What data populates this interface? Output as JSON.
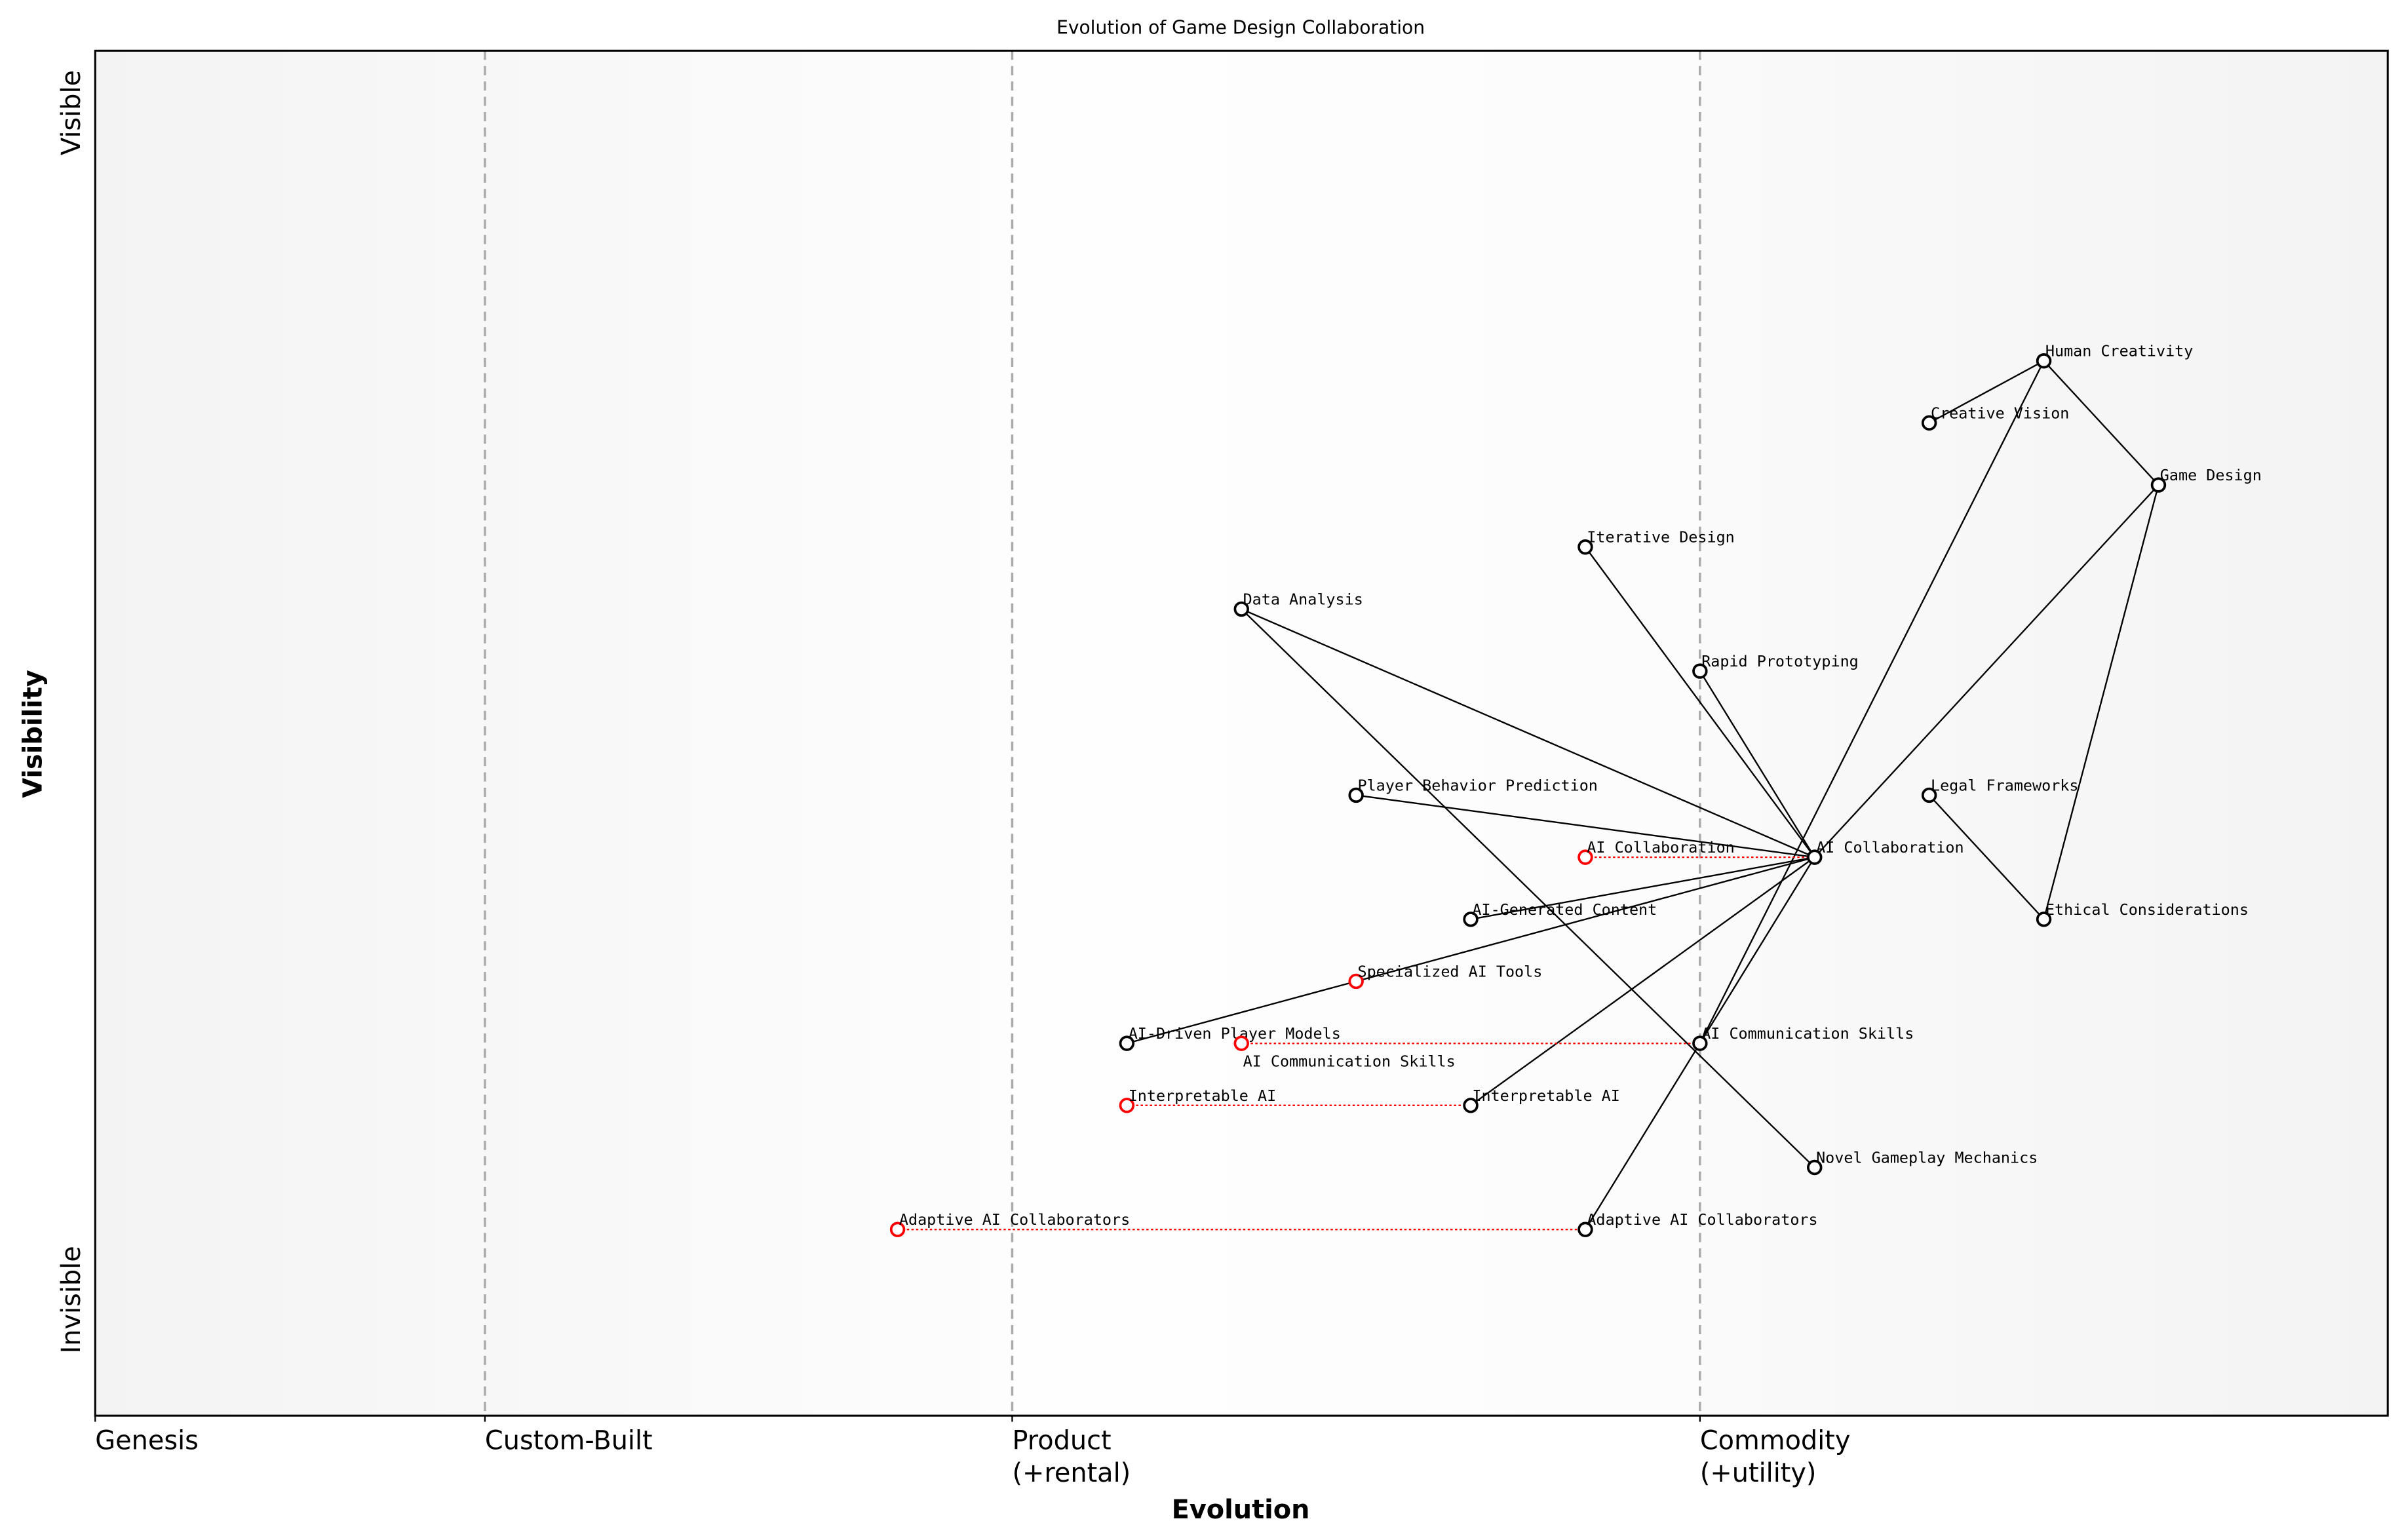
{
  "chart_data": {
    "type": "scatter",
    "title": "Evolution of Game Design Collaboration",
    "xlabel": "Evolution",
    "ylabel": "Visibility",
    "xlim": [
      0,
      1
    ],
    "ylim": [
      -0.05,
      1.05
    ],
    "stages": [
      {
        "label": "Genesis",
        "x": 0
      },
      {
        "label": "Custom-Built",
        "x": 0.17
      },
      {
        "label": "Product\n(+rental)",
        "x": 0.4
      },
      {
        "label": "Commodity\n(+utility)",
        "x": 0.7
      }
    ],
    "y_ticks": [
      {
        "label": "Invisible",
        "y": 0
      },
      {
        "label": "Visible",
        "y": 1
      }
    ],
    "nodes": [
      {
        "id": "hc",
        "name": "Human Creativity",
        "x": 0.85,
        "y": 0.8,
        "color": "#000000"
      },
      {
        "id": "cv",
        "name": "Creative Vision",
        "x": 0.8,
        "y": 0.75,
        "color": "#000000"
      },
      {
        "id": "gd",
        "name": "Game Design",
        "x": 0.9,
        "y": 0.7,
        "color": "#000000"
      },
      {
        "id": "id",
        "name": "Iterative Design",
        "x": 0.65,
        "y": 0.65,
        "color": "#000000"
      },
      {
        "id": "da",
        "name": "Data Analysis",
        "x": 0.5,
        "y": 0.6,
        "color": "#000000"
      },
      {
        "id": "rp",
        "name": "Rapid Prototyping",
        "x": 0.7,
        "y": 0.55,
        "color": "#000000"
      },
      {
        "id": "pbp",
        "name": "Player Behavior Prediction",
        "x": 0.55,
        "y": 0.45,
        "color": "#000000"
      },
      {
        "id": "lf",
        "name": "Legal Frameworks",
        "x": 0.8,
        "y": 0.45,
        "color": "#000000"
      },
      {
        "id": "aic",
        "name": "AI Collaboration",
        "x": 0.75,
        "y": 0.4,
        "color": "#000000"
      },
      {
        "id": "aic_old",
        "name": "AI Collaboration",
        "x": 0.65,
        "y": 0.4,
        "color": "#ff0000"
      },
      {
        "id": "agc",
        "name": "AI-Generated Content",
        "x": 0.6,
        "y": 0.35,
        "color": "#000000"
      },
      {
        "id": "ec",
        "name": "Ethical Considerations",
        "x": 0.85,
        "y": 0.35,
        "color": "#000000"
      },
      {
        "id": "sat",
        "name": "Specialized AI Tools",
        "x": 0.55,
        "y": 0.3,
        "color": "#ff0000"
      },
      {
        "id": "adpm",
        "name": "AI-Driven Player Models",
        "x": 0.45,
        "y": 0.25,
        "color": "#000000"
      },
      {
        "id": "acs_old",
        "name": "AI Communication Skills",
        "x": 0.5,
        "y": 0.25,
        "color": "#ff0000"
      },
      {
        "id": "acs",
        "name": "AI Communication Skills",
        "x": 0.7,
        "y": 0.25,
        "color": "#000000"
      },
      {
        "id": "ia_old",
        "name": "Interpretable AI",
        "x": 0.45,
        "y": 0.2,
        "color": "#ff0000"
      },
      {
        "id": "ia",
        "name": "Interpretable AI",
        "x": 0.6,
        "y": 0.2,
        "color": "#000000"
      },
      {
        "id": "ngm",
        "name": "Novel Gameplay Mechanics",
        "x": 0.75,
        "y": 0.15,
        "color": "#000000"
      },
      {
        "id": "aac_old",
        "name": "Adaptive AI Collaborators",
        "x": 0.35,
        "y": 0.1,
        "color": "#ff0000"
      },
      {
        "id": "aac",
        "name": "Adaptive AI Collaborators",
        "x": 0.65,
        "y": 0.1,
        "color": "#000000"
      }
    ],
    "links": [
      [
        "hc",
        "cv"
      ],
      [
        "hc",
        "gd"
      ],
      [
        "hc",
        "acs"
      ],
      [
        "gd",
        "aic"
      ],
      [
        "gd",
        "ec"
      ],
      [
        "lf",
        "ec"
      ],
      [
        "id",
        "aic"
      ],
      [
        "rp",
        "aic"
      ],
      [
        "da",
        "aic"
      ],
      [
        "da",
        "ngm"
      ],
      [
        "pbp",
        "aic"
      ],
      [
        "agc",
        "aic"
      ],
      [
        "sat",
        "aic"
      ],
      [
        "adpm",
        "sat"
      ],
      [
        "ia",
        "aic"
      ],
      [
        "aic",
        "acs"
      ],
      [
        "acs",
        "aac"
      ]
    ],
    "evolutions": [
      [
        "aic_old",
        "aic"
      ],
      [
        "acs_old",
        "acs"
      ],
      [
        "ia_old",
        "ia"
      ],
      [
        "aac_old",
        "aac"
      ]
    ],
    "colors": {
      "evolution_line": "#ff0000",
      "stage_divider": "#aaaaaa"
    }
  }
}
